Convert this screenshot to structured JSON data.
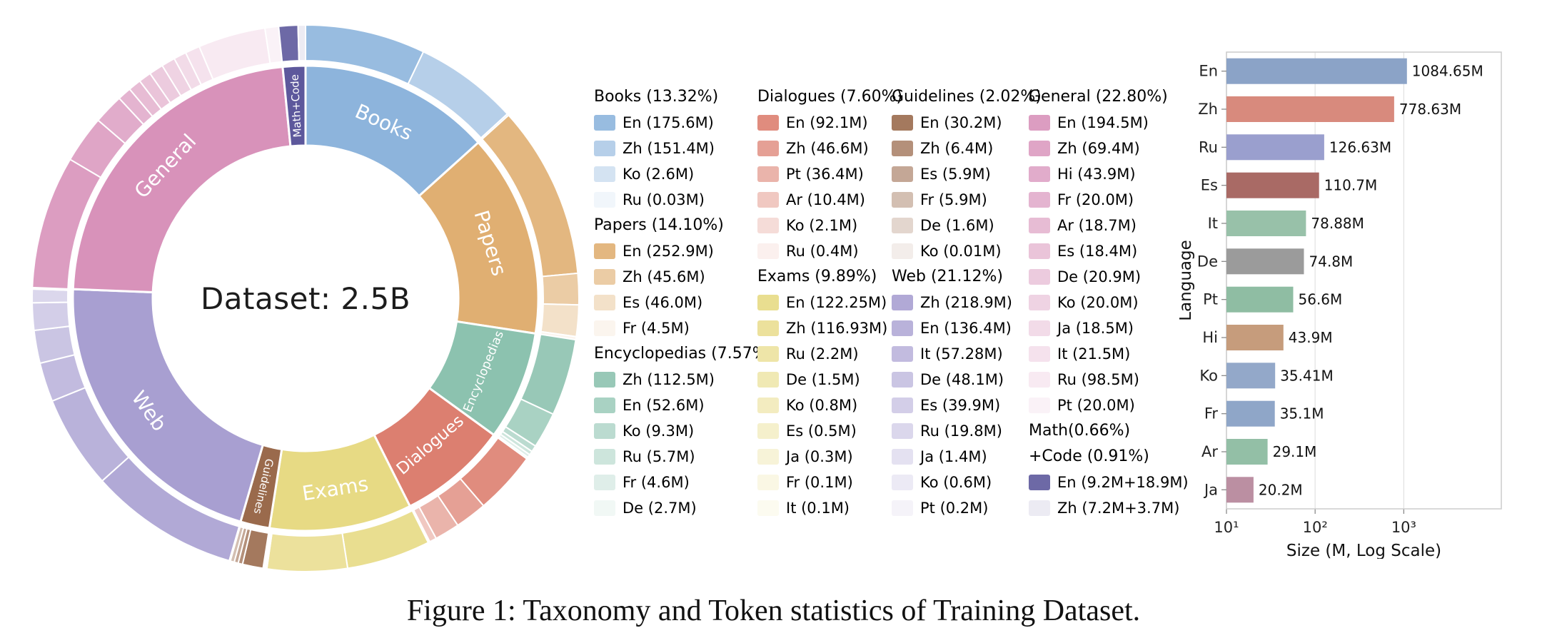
{
  "figure": {
    "caption": "Figure 1: Taxonomy and Token statistics of Training Dataset."
  },
  "chart_data": [
    {
      "type": "sunburst",
      "center_label": "Dataset: 2.5B",
      "total_tokens": "2.5B",
      "ring_order_clockwise_from_top": [
        "Books",
        "Papers",
        "Encyclopedias",
        "Dialogues",
        "Exams",
        "Guidelines",
        "Web",
        "General",
        "Math+Code"
      ],
      "legend_columns": [
        [
          "Books",
          "Papers",
          "Encyclopedias"
        ],
        [
          "Dialogues",
          "Exams"
        ],
        [
          "Guidelines",
          "Web"
        ],
        [
          "General",
          "Math+Code"
        ]
      ],
      "categories": [
        {
          "name": "Books",
          "header": "Books (13.32%)",
          "pct": 13.32,
          "color": "#8db4dc",
          "items": [
            {
              "lang": "En",
              "label": "En (175.6M)",
              "value": 175.6
            },
            {
              "lang": "Zh",
              "label": "Zh (151.4M)",
              "value": 151.4
            },
            {
              "lang": "Ko",
              "label": "Ko (2.6M)",
              "value": 2.6
            },
            {
              "lang": "Ru",
              "label": "Ru (0.03M)",
              "value": 0.03
            }
          ]
        },
        {
          "name": "Papers",
          "header": "Papers (14.10%)",
          "pct": 14.1,
          "color": "#e0af72",
          "items": [
            {
              "lang": "En",
              "label": "En (252.9M)",
              "value": 252.9
            },
            {
              "lang": "Zh",
              "label": "Zh (45.6M)",
              "value": 45.6
            },
            {
              "lang": "Es",
              "label": "Es (46.0M)",
              "value": 46.0
            },
            {
              "lang": "Fr",
              "label": "Fr (4.5M)",
              "value": 4.5
            }
          ]
        },
        {
          "name": "Encyclopedias",
          "header": "Encyclopedias (7.57%)",
          "pct": 7.57,
          "color": "#8cc2af",
          "items": [
            {
              "lang": "Zh",
              "label": "Zh (112.5M)",
              "value": 112.5
            },
            {
              "lang": "En",
              "label": "En (52.6M)",
              "value": 52.6
            },
            {
              "lang": "Ko",
              "label": "Ko (9.3M)",
              "value": 9.3
            },
            {
              "lang": "Ru",
              "label": "Ru (5.7M)",
              "value": 5.7
            },
            {
              "lang": "Fr",
              "label": "Fr (4.6M)",
              "value": 4.6
            },
            {
              "lang": "De",
              "label": "De (2.7M)",
              "value": 2.7
            }
          ]
        },
        {
          "name": "Dialogues",
          "header": "Dialogues (7.60%)",
          "pct": 7.6,
          "color": "#dc7f70",
          "items": [
            {
              "lang": "En",
              "label": "En (92.1M)",
              "value": 92.1
            },
            {
              "lang": "Zh",
              "label": "Zh (46.6M)",
              "value": 46.6
            },
            {
              "lang": "Pt",
              "label": "Pt (36.4M)",
              "value": 36.4
            },
            {
              "lang": "Ar",
              "label": "Ar (10.4M)",
              "value": 10.4
            },
            {
              "lang": "Ko",
              "label": "Ko (2.1M)",
              "value": 2.1
            },
            {
              "lang": "Ru",
              "label": "Ru (0.4M)",
              "value": 0.4
            }
          ]
        },
        {
          "name": "Exams",
          "header": "Exams (9.89%)",
          "pct": 9.89,
          "color": "#e7da84",
          "items": [
            {
              "lang": "En",
              "label": "En (122.25M)",
              "value": 122.25
            },
            {
              "lang": "Zh",
              "label": "Zh (116.93M)",
              "value": 116.93
            },
            {
              "lang": "Ru",
              "label": "Ru (2.2M)",
              "value": 2.2
            },
            {
              "lang": "De",
              "label": "De (1.5M)",
              "value": 1.5
            },
            {
              "lang": "Ko",
              "label": "Ko (0.8M)",
              "value": 0.8
            },
            {
              "lang": "Es",
              "label": "Es (0.5M)",
              "value": 0.5
            },
            {
              "lang": "Ja",
              "label": "Ja (0.3M)",
              "value": 0.3
            },
            {
              "lang": "Fr",
              "label": "Fr (0.1M)",
              "value": 0.1
            },
            {
              "lang": "It",
              "label": "It (0.1M)",
              "value": 0.1
            }
          ]
        },
        {
          "name": "Guidelines",
          "header": "Guidelines (2.02%)",
          "pct": 2.02,
          "color": "#9a6a4c",
          "items": [
            {
              "lang": "En",
              "label": "En (30.2M)",
              "value": 30.2
            },
            {
              "lang": "Zh",
              "label": "Zh (6.4M)",
              "value": 6.4
            },
            {
              "lang": "Es",
              "label": "Es (5.9M)",
              "value": 5.9
            },
            {
              "lang": "Fr",
              "label": "Fr (5.9M)",
              "value": 5.9
            },
            {
              "lang": "De",
              "label": "De (1.6M)",
              "value": 1.6
            },
            {
              "lang": "Ko",
              "label": "Ko (0.01M)",
              "value": 0.01
            }
          ]
        },
        {
          "name": "Web",
          "header": "Web (21.12%)",
          "pct": 21.12,
          "color": "#a89fd1",
          "items": [
            {
              "lang": "Zh",
              "label": "Zh (218.9M)",
              "value": 218.9
            },
            {
              "lang": "En",
              "label": "En (136.4M)",
              "value": 136.4
            },
            {
              "lang": "It",
              "label": "It (57.28M)",
              "value": 57.28
            },
            {
              "lang": "De",
              "label": "De (48.1M)",
              "value": 48.1
            },
            {
              "lang": "Es",
              "label": "Es (39.9M)",
              "value": 39.9
            },
            {
              "lang": "Ru",
              "label": "Ru (19.8M)",
              "value": 19.8
            },
            {
              "lang": "Ja",
              "label": "Ja (1.4M)",
              "value": 1.4
            },
            {
              "lang": "Ko",
              "label": "Ko (0.6M)",
              "value": 0.6
            },
            {
              "lang": "Pt",
              "label": "Pt (0.2M)",
              "value": 0.2
            }
          ]
        },
        {
          "name": "General",
          "header": "General (22.80%)",
          "pct": 22.8,
          "color": "#d892ba",
          "items": [
            {
              "lang": "En",
              "label": "En (194.5M)",
              "value": 194.5
            },
            {
              "lang": "Zh",
              "label": "Zh (69.4M)",
              "value": 69.4
            },
            {
              "lang": "Hi",
              "label": "Hi (43.9M)",
              "value": 43.9
            },
            {
              "lang": "Fr",
              "label": "Fr (20.0M)",
              "value": 20.0
            },
            {
              "lang": "Ar",
              "label": "Ar (18.7M)",
              "value": 18.7
            },
            {
              "lang": "Es",
              "label": "Es (18.4M)",
              "value": 18.4
            },
            {
              "lang": "De",
              "label": "De (20.9M)",
              "value": 20.9
            },
            {
              "lang": "Ko",
              "label": "Ko (20.0M)",
              "value": 20.0
            },
            {
              "lang": "Ja",
              "label": "Ja (18.5M)",
              "value": 18.5
            },
            {
              "lang": "It",
              "label": "It (21.5M)",
              "value": 21.5
            },
            {
              "lang": "Ru",
              "label": "Ru (98.5M)",
              "value": 98.5
            },
            {
              "lang": "Pt",
              "label": "Pt (20.0M)",
              "value": 20.0
            }
          ]
        },
        {
          "name": "Math+Code",
          "header": "Math(0.66%)\n+Code (0.91%)",
          "pct": 1.57,
          "color": "#5d589c",
          "items": [
            {
              "lang": "En",
              "label": "En (9.2M+18.9M)",
              "value": 28.1
            },
            {
              "lang": "Zh",
              "label": "Zh (7.2M+3.7M)",
              "value": 10.9
            }
          ]
        }
      ]
    },
    {
      "type": "bar",
      "orientation": "horizontal",
      "xlabel": "Size (M, Log Scale)",
      "ylabel": "Language",
      "xscale": "log",
      "xticks": [
        "10¹",
        "10²",
        "10³"
      ],
      "xtick_exponents": [
        1,
        2,
        3
      ],
      "xlim_exponents": [
        1,
        4.1
      ],
      "grid": "vertical",
      "bars": [
        {
          "lang": "En",
          "value": 1084.65,
          "label": "1084.65M",
          "color": "#8ba3c7"
        },
        {
          "lang": "Zh",
          "value": 778.63,
          "label": "778.63M",
          "color": "#d88a7d"
        },
        {
          "lang": "Ru",
          "value": 126.63,
          "label": "126.63M",
          "color": "#9a9fce"
        },
        {
          "lang": "Es",
          "value": 110.7,
          "label": "110.7M",
          "color": "#a96a65"
        },
        {
          "lang": "It",
          "value": 78.88,
          "label": "78.88M",
          "color": "#98c1a9"
        },
        {
          "lang": "De",
          "value": 74.8,
          "label": "74.8M",
          "color": "#9b9b9b"
        },
        {
          "lang": "Pt",
          "value": 56.6,
          "label": "56.6M",
          "color": "#8fbda3"
        },
        {
          "lang": "Hi",
          "value": 43.9,
          "label": "43.9M",
          "color": "#c69c7c"
        },
        {
          "lang": "Ko",
          "value": 35.41,
          "label": "35.41M",
          "color": "#93a8c9"
        },
        {
          "lang": "Fr",
          "value": 35.1,
          "label": "35.1M",
          "color": "#8fa6c8"
        },
        {
          "lang": "Ar",
          "value": 29.1,
          "label": "29.1M",
          "color": "#93bfa6"
        },
        {
          "lang": "Ja",
          "value": 20.2,
          "label": "20.2M",
          "color": "#bb8fa2"
        }
      ]
    }
  ]
}
